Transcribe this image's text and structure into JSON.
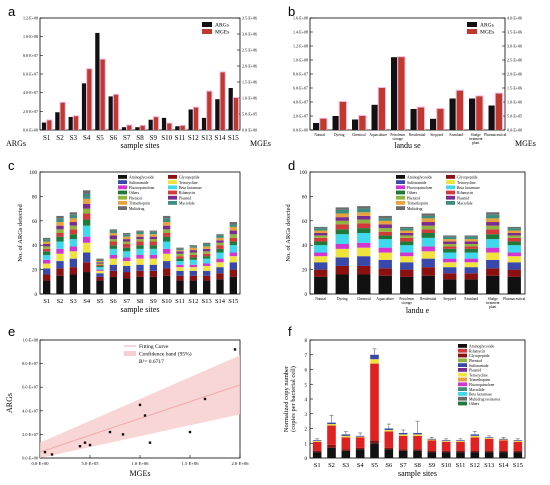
{
  "chart_data": [
    {
      "panel": "a",
      "type": "bar",
      "xlabel": "sample sites",
      "ylabel_left": "ARGs",
      "ylabel_right": "MGEs",
      "left_ticks": [
        "0.0·E+00",
        "2.0·E+07",
        "4.0·E+07",
        "6.0·E+07",
        "8.0·E+07",
        "1.0·E+08",
        "1.2·E+08"
      ],
      "right_ticks": [
        "0.0·E+00",
        "5.0·E+05",
        "1.0·E+06",
        "1.5·E+06",
        "2.0·E+06",
        "2.5·E+06",
        "3.0·E+06",
        "3.5·E+06"
      ],
      "ylim_left": [
        0,
        120000000.0
      ],
      "ylim_right": [
        0,
        3500000.0
      ],
      "categories": [
        "S1",
        "S2",
        "S3",
        "S4",
        "S5",
        "S6",
        "S7",
        "S8",
        "S9",
        "S10",
        "S11",
        "S12",
        "S13",
        "S14",
        "S15"
      ],
      "series": [
        {
          "name": "ARGs",
          "color": "#111111",
          "axis": "left",
          "values": [
            8000000.0,
            19000000.0,
            14000000.0,
            50000000.0,
            104000000.0,
            36000000.0,
            3000000.0,
            3000000.0,
            11000000.0,
            13000000.0,
            4000000.0,
            22000000.0,
            13000000.0,
            33000000.0,
            45000000.0
          ]
        },
        {
          "name": "MGEs",
          "color": "#c0392b",
          "axis": "right",
          "values": [
            300000.0,
            850000.0,
            430000.0,
            1900000.0,
            2200000.0,
            1100000.0,
            140000.0,
            130000.0,
            400000.0,
            200000.0,
            130000.0,
            700000.0,
            1200000.0,
            1800000.0,
            1000000.0
          ]
        }
      ],
      "legend": "top-right"
    },
    {
      "panel": "b",
      "type": "bar",
      "xlabel": "landu se",
      "ylabel_right": "MGEs",
      "left_ticks": [
        "0.0·E+00",
        "2.0·E+07",
        "4.0·E+07",
        "6.0·E+07",
        "8.0·E+07",
        "1.0·E+08",
        "1.2·E+08",
        "1.4·E+08",
        "1.6·E+08"
      ],
      "right_ticks": [
        "0.0·E+00",
        "5.0·E+05",
        "1.0·E+06",
        "1.5·E+06",
        "2.0·E+06",
        "2.5·E+06",
        "3.0·E+06",
        "3.5·E+06",
        "4.0·E+06"
      ],
      "ylim_left": [
        0,
        160000000.0
      ],
      "ylim_right": [
        0,
        4000000.0
      ],
      "categories": [
        "Natural",
        "Dyeing",
        "Chemical",
        "Aquaculture",
        "Petroleum storage",
        "Residential",
        "Stepyard",
        "Farmland",
        "Sludge treatment plant",
        "Pharmaceutical"
      ],
      "series": [
        {
          "name": "ARGs",
          "color": "#111111",
          "axis": "left",
          "values": [
            10000000.0,
            20000000.0,
            15000000.0,
            36000000.0,
            104000000.0,
            30000000.0,
            16000000.0,
            45000000.0,
            45000000.0,
            35000000.0
          ]
        },
        {
          "name": "MGEs",
          "color": "#c0392b",
          "axis": "right",
          "values": [
            400000.0,
            1000000.0,
            500000.0,
            1500000.0,
            2600000.0,
            800000.0,
            750000.0,
            1400000.0,
            1200000.0,
            1300000.0
          ]
        }
      ],
      "legend": "top-right"
    },
    {
      "panel": "c",
      "type": "bar",
      "stacked": true,
      "xlabel": "sample sites",
      "ylabel": "No. of ARGs detected",
      "ylim": [
        0,
        100
      ],
      "yticks": [
        "0",
        "20",
        "40",
        "60",
        "80",
        "100"
      ],
      "categories": [
        "S1",
        "S2",
        "S3",
        "S4",
        "S5",
        "S6",
        "S7",
        "S8",
        "S9",
        "S10",
        "S11",
        "S12",
        "S13",
        "S14",
        "S15"
      ],
      "series": [
        {
          "name": "Aminoglycoside",
          "color": "#111111",
          "values": [
            11,
            15,
            16,
            18,
            11,
            14,
            13,
            14,
            14,
            15,
            11,
            11,
            11,
            12,
            14
          ]
        },
        {
          "name": "Glycopeptide",
          "color": "#8b1010",
          "values": [
            5,
            6,
            6,
            8,
            3,
            5,
            5,
            5,
            5,
            6,
            4,
            4,
            4,
            5,
            6
          ]
        },
        {
          "name": "Sulfonamide",
          "color": "#3949ab",
          "values": [
            5,
            6,
            7,
            8,
            3,
            5,
            5,
            5,
            5,
            6,
            4,
            4,
            4,
            5,
            6
          ]
        },
        {
          "name": "Tetracycline",
          "color": "#f0e43c",
          "values": [
            4,
            6,
            6,
            8,
            2,
            5,
            4,
            5,
            5,
            6,
            3,
            3,
            4,
            4,
            5
          ]
        },
        {
          "name": "Fluoroquinolone",
          "color": "#d236d2",
          "values": [
            3,
            4,
            4,
            5,
            1,
            3,
            3,
            3,
            3,
            4,
            2,
            2,
            2,
            3,
            3
          ]
        },
        {
          "name": "Beta lactamase",
          "color": "#40d8ec",
          "values": [
            4,
            6,
            6,
            9,
            2,
            5,
            5,
            5,
            5,
            6,
            3,
            4,
            4,
            5,
            6
          ]
        },
        {
          "name": "Others",
          "color": "#1f7a3a",
          "values": [
            3,
            4,
            4,
            5,
            1,
            3,
            3,
            3,
            3,
            4,
            2,
            2,
            2,
            3,
            3
          ]
        },
        {
          "name": "Rifamycin",
          "color": "#d33a3a",
          "values": [
            2,
            3,
            4,
            5,
            1,
            3,
            3,
            3,
            3,
            3,
            2,
            2,
            2,
            3,
            3
          ]
        },
        {
          "name": "Phenicol",
          "color": "#8fb63c",
          "values": [
            2,
            3,
            3,
            4,
            1,
            2,
            2,
            2,
            2,
            3,
            2,
            2,
            2,
            2,
            3
          ]
        },
        {
          "name": "Plasmid",
          "color": "#7b2c8f",
          "values": [
            2,
            3,
            3,
            4,
            1,
            3,
            2,
            2,
            2,
            3,
            2,
            2,
            2,
            2,
            3
          ]
        },
        {
          "name": "Trimethoprim",
          "color": "#e9a13c",
          "values": [
            2,
            3,
            3,
            4,
            1,
            2,
            2,
            2,
            2,
            3,
            1,
            2,
            2,
            2,
            3
          ]
        },
        {
          "name": "Macrolide",
          "color": "#3c8f7e",
          "values": [
            2,
            3,
            3,
            4,
            1,
            2,
            2,
            2,
            2,
            3,
            1,
            1,
            2,
            2,
            2
          ]
        },
        {
          "name": "Multidrug",
          "color": "#6b6b6b",
          "values": [
            1,
            2,
            2,
            3,
            1,
            1,
            1,
            1,
            1,
            2,
            1,
            1,
            1,
            1,
            2
          ]
        }
      ],
      "legend": "top"
    },
    {
      "panel": "d",
      "type": "bar",
      "stacked": true,
      "xlabel": "landu e",
      "ylabel": "No. of ARGs detected",
      "ylim": [
        0,
        100
      ],
      "yticks": [
        "0",
        "20",
        "40",
        "60",
        "80",
        "100"
      ],
      "categories": [
        "Natural",
        "Dyeing",
        "Chemical",
        "Aquaculture",
        "Petroleum storage",
        "Residential",
        "Stepyard",
        "Farmland",
        "Sludge treatment plant",
        "Pharmaceutical"
      ],
      "series": [
        {
          "name": "Aminoglycoside",
          "color": "#111111",
          "values": [
            14,
            16,
            16,
            15,
            14,
            15,
            12,
            12,
            15,
            14
          ]
        },
        {
          "name": "Glycopeptide",
          "color": "#8b1010",
          "values": [
            6,
            7,
            7,
            6,
            6,
            7,
            5,
            5,
            6,
            6
          ]
        },
        {
          "name": "Sulfonamide",
          "color": "#3949ab",
          "values": [
            6,
            7,
            8,
            7,
            6,
            7,
            5,
            5,
            7,
            6
          ]
        },
        {
          "name": "Tetracycline",
          "color": "#f0e43c",
          "values": [
            5,
            7,
            7,
            6,
            5,
            6,
            4,
            4,
            6,
            5
          ]
        },
        {
          "name": "Fluoroquinolone",
          "color": "#d236d2",
          "values": [
            3,
            4,
            4,
            4,
            3,
            4,
            3,
            3,
            4,
            3
          ]
        },
        {
          "name": "Beta lactamase",
          "color": "#40d8ec",
          "values": [
            6,
            8,
            8,
            7,
            6,
            7,
            5,
            5,
            7,
            6
          ]
        },
        {
          "name": "Others",
          "color": "#1f7a3a",
          "values": [
            3,
            4,
            4,
            3,
            3,
            4,
            3,
            3,
            4,
            3
          ]
        },
        {
          "name": "Rifamycin",
          "color": "#d33a3a",
          "values": [
            3,
            4,
            4,
            3,
            3,
            3,
            2,
            2,
            4,
            3
          ]
        },
        {
          "name": "Phenicol",
          "color": "#8fb63c",
          "values": [
            2,
            3,
            3,
            3,
            2,
            3,
            2,
            2,
            3,
            2
          ]
        },
        {
          "name": "Plasmid",
          "color": "#7b2c8f",
          "values": [
            2,
            3,
            3,
            3,
            2,
            3,
            2,
            2,
            3,
            2
          ]
        },
        {
          "name": "Trimethoprim",
          "color": "#e9a13c",
          "values": [
            2,
            3,
            3,
            3,
            2,
            3,
            2,
            2,
            3,
            2
          ]
        },
        {
          "name": "Macrolide",
          "color": "#3c8f7e",
          "values": [
            2,
            3,
            3,
            2,
            2,
            2,
            2,
            2,
            3,
            2
          ]
        },
        {
          "name": "Multidrug",
          "color": "#6b6b6b",
          "values": [
            1,
            2,
            2,
            2,
            1,
            2,
            1,
            1,
            2,
            1
          ]
        }
      ],
      "legend": "top"
    },
    {
      "panel": "e",
      "type": "scatter",
      "xlabel": "MGEs",
      "ylabel": "ARGs",
      "xlim": [
        0,
        2000000.0
      ],
      "ylim": [
        0,
        100000000.0
      ],
      "xticks": [
        "0.0·E+00",
        "5.0·E+05",
        "1.0·E+06",
        "1.5·E+06",
        "2.0·E+06"
      ],
      "yticks": [
        "0.0·E+00",
        "2.0·E+07",
        "4.0·E+07",
        "6.0·E+07",
        "8.0·E+07",
        "1.0·E+08"
      ],
      "points": [
        {
          "x": 50000.0,
          "y": 5000000.0
        },
        {
          "x": 120000.0,
          "y": 3000000.0
        },
        {
          "x": 400000.0,
          "y": 10000000.0
        },
        {
          "x": 450000.0,
          "y": 13000000.0
        },
        {
          "x": 500000.0,
          "y": 11000000.0
        },
        {
          "x": 700000.0,
          "y": 22000000.0
        },
        {
          "x": 830000.0,
          "y": 20000000.0
        },
        {
          "x": 1000000.0,
          "y": 45000000.0
        },
        {
          "x": 1050000.0,
          "y": 36000000.0
        },
        {
          "x": 1100000.0,
          "y": 13000000.0
        },
        {
          "x": 1500000.0,
          "y": 22000000.0
        },
        {
          "x": 1650000.0,
          "y": 50000000.0
        },
        {
          "x": 1950000.0,
          "y": 92000000.0
        }
      ],
      "fit": {
        "x0": 0,
        "y0": 5000000.0,
        "x1": 2000000.0,
        "y1": 62000000.0
      },
      "legend_entries": [
        "Fitting Curve",
        "Confidence band (95%)"
      ],
      "r2_text": "R²= 0.6717",
      "legend": "top"
    },
    {
      "panel": "f",
      "type": "bar",
      "stacked": true,
      "xlabel": "sample sites",
      "ylabel": "Normalized copy number (copies per bacterial cell)",
      "ylim": [
        0,
        8
      ],
      "yticks": [
        "0",
        "1",
        "2",
        "3",
        "4",
        "5",
        "6",
        "7",
        "8"
      ],
      "categories": [
        "S1",
        "S2",
        "S3",
        "S4",
        "S5",
        "S6",
        "S7",
        "S8",
        "S9",
        "S10",
        "S11",
        "S12",
        "S13",
        "S14",
        "S15"
      ],
      "series": [
        {
          "name": "Aminoglycoside",
          "color": "#111111",
          "values": [
            0.4,
            0.7,
            0.5,
            0.6,
            1.0,
            0.6,
            0.5,
            0.5,
            0.4,
            0.4,
            0.4,
            0.4,
            0.4,
            0.4,
            0.4
          ]
        },
        {
          "name": "Glycopeptide",
          "color": "#8b1010",
          "values": [
            0.1,
            0.2,
            0.1,
            0.1,
            0.2,
            0.1,
            0.1,
            0.1,
            0.1,
            0.1,
            0.1,
            0.1,
            0.1,
            0.1,
            0.1
          ]
        },
        {
          "name": "Sulfonamide",
          "color": "#e02121",
          "values": [
            0.6,
            1.3,
            0.8,
            0.7,
            5.2,
            1.1,
            0.9,
            0.9,
            0.7,
            0.6,
            0.6,
            0.9,
            0.8,
            0.7,
            0.6
          ]
        },
        {
          "name": "Multidrug resistance",
          "color": "#f0e43c",
          "values": [
            0.05,
            0.1,
            0.1,
            0.05,
            0.3,
            0.1,
            0.1,
            0.1,
            0.05,
            0.05,
            0.05,
            0.1,
            0.05,
            0.05,
            0.05
          ]
        },
        {
          "name": "Others",
          "color": "#3949ab",
          "values": [
            0.05,
            0.1,
            0.1,
            0.05,
            0.3,
            0.1,
            0.1,
            0.1,
            0.05,
            0.05,
            0.05,
            0.1,
            0.05,
            0.05,
            0.05
          ]
        }
      ],
      "legend_labels": [
        "Aminoglycoside",
        "Rifamycin",
        "Glycopeptide",
        "Phenicol",
        "Sulfonamide",
        "Plasmid",
        "Tetracycline",
        "Trimethoprim",
        "Fluoroquinolone",
        "Macrolide",
        "Beta lactamase",
        "Multidrug resistance",
        "Others"
      ],
      "legend_colors": [
        "#111111",
        "#d33a3a",
        "#8b1010",
        "#8fb63c",
        "#3949ab",
        "#7b2c8f",
        "#f0e43c",
        "#e9a13c",
        "#d236d2",
        "#3c8f7e",
        "#40d8ec",
        "#6b6b6b",
        "#1f7a3a"
      ],
      "errors": [
        0.1,
        0.5,
        0.2,
        0.2,
        0.4,
        0.3,
        0.2,
        0.8,
        0.1,
        0.1,
        0.1,
        0.2,
        0.1,
        0.1,
        0.1
      ],
      "legend": "top-right"
    }
  ]
}
